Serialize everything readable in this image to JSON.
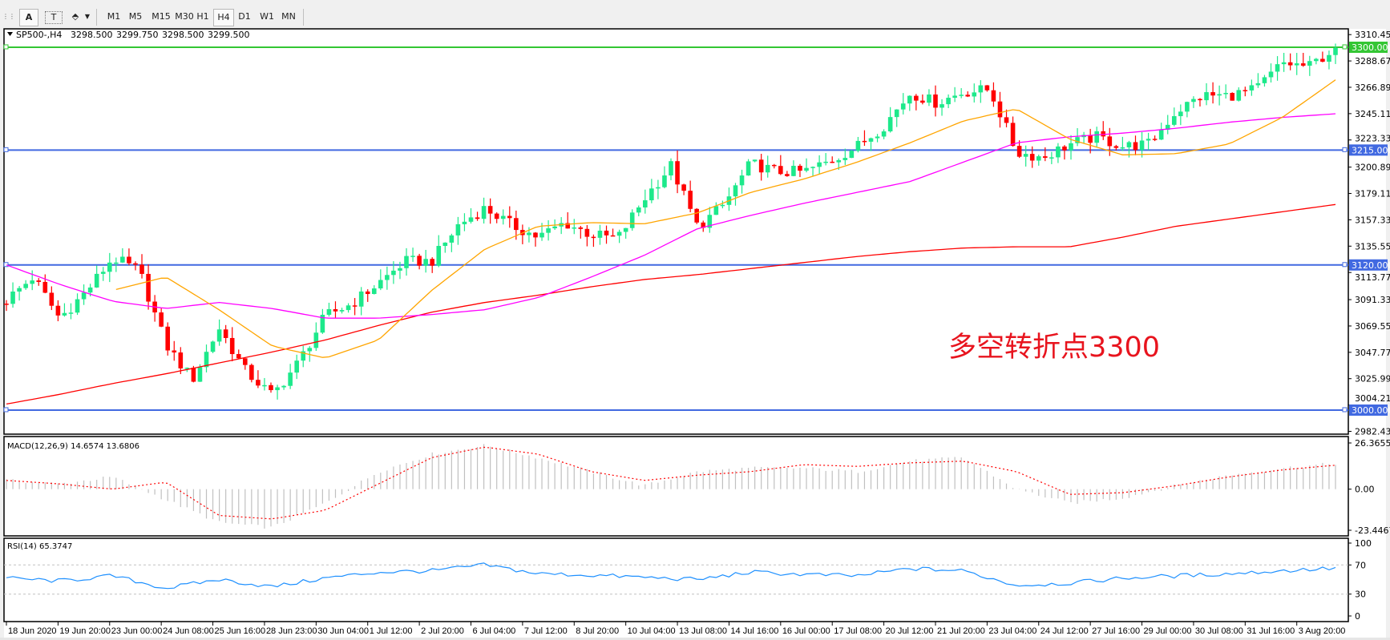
{
  "toolbar": {
    "buttons": {
      "font": "A",
      "text": "T",
      "draw": "⬘"
    },
    "timeframes": [
      "M1",
      "M5",
      "M15",
      "M30",
      "H1",
      "H4",
      "D1",
      "W1",
      "MN"
    ],
    "selected_timeframe": "H4"
  },
  "chart_header": {
    "symbol": "SP500-,H4",
    "open": "3298.500",
    "high": "3299.750",
    "low": "3298.500",
    "close": "3299.500"
  },
  "annotation": "多空转折点3300",
  "price_axis": [
    "3310.450",
    "3288.670",
    "3266.890",
    "3245.110",
    "3223.330",
    "3200.890",
    "3179.110",
    "3157.330",
    "3135.550",
    "3113.770",
    "3091.330",
    "3069.550",
    "3047.770",
    "3025.990",
    "3004.210",
    "2982.430"
  ],
  "levels": [
    {
      "price": 3300,
      "label": "3300.000",
      "color": "#33c633"
    },
    {
      "price": 3215,
      "label": "3215.000",
      "color": "#4169e1"
    },
    {
      "price": 3120,
      "label": "3120.000",
      "color": "#4169e1"
    },
    {
      "price": 3000,
      "label": "3000.000",
      "color": "#4169e1"
    }
  ],
  "time_labels": [
    "18 Jun 2020",
    "19 Jun 20:00",
    "23 Jun 00:00",
    "24 Jun 08:00",
    "25 Jun 16:00",
    "28 Jun 23:00",
    "30 Jun 04:00",
    "1 Jul 12:00",
    "2 Jul 20:00",
    "6 Jul 04:00",
    "7 Jul 12:00",
    "8 Jul 20:00",
    "10 Jul 04:00",
    "13 Jul 08:00",
    "14 Jul 16:00",
    "16 Jul 00:00",
    "17 Jul 08:00",
    "20 Jul 12:00",
    "21 Jul 20:00",
    "23 Jul 04:00",
    "24 Jul 12:00",
    "27 Jul 16:00",
    "29 Jul 00:00",
    "30 Jul 08:00",
    "31 Jul 16:00",
    "3 Aug 20:00"
  ],
  "macd": {
    "label": "MACD(12,26,9) 14.6574 13.6806",
    "axis": [
      "26.3655",
      "0.00",
      "-23.4467"
    ]
  },
  "rsi": {
    "label": "RSI(14) 65.3747",
    "axis": [
      "100",
      "70",
      "30",
      "0"
    ]
  },
  "colors": {
    "bull": "#1de98b",
    "bear": "#ff0000",
    "ma_fast": "#ffa500",
    "ma_mid": "#ff00ff",
    "ma_slow": "#ff0000",
    "rsi": "#1e90ff",
    "macd_signal": "#ff0000",
    "macd_hist": "#c0c0c0",
    "annotation": "#e8141e"
  },
  "chart_data": {
    "type": "candlestick",
    "approx_close_path": [
      3091,
      3110,
      3076,
      3098,
      3126,
      3115,
      3054,
      3025,
      3068,
      3032,
      3012,
      3040,
      3078,
      3088,
      3105,
      3123,
      3123,
      3153,
      3167,
      3153,
      3143,
      3155,
      3145,
      3142,
      3175,
      3202,
      3151,
      3170,
      3204,
      3197,
      3197,
      3206,
      3218,
      3235,
      3262,
      3254,
      3263,
      3265,
      3213,
      3209,
      3220,
      3226,
      3218,
      3220,
      3247,
      3260,
      3260,
      3265,
      3287,
      3284,
      3299.5
    ],
    "ma_fast": [
      null,
      null,
      3099,
      3110,
      3083,
      3053,
      3043,
      3058,
      3099,
      3133,
      3152,
      3155,
      3154,
      3163,
      3180,
      3191,
      3205,
      3221,
      3239,
      3249,
      3224,
      3211,
      3212,
      3220,
      3242,
      3273
    ],
    "ma_mid": [
      3120,
      3104,
      3090,
      3084,
      3089,
      3084,
      3076,
      3076,
      3079,
      3083,
      3093,
      3110,
      3128,
      3150,
      3161,
      3171,
      3180,
      3189,
      3205,
      3221,
      3226,
      3229,
      3233,
      3238,
      3242,
      3245
    ],
    "ma_slow": [
      3005,
      3013,
      3022,
      3030,
      3039,
      3048,
      3058,
      3070,
      3081,
      3089,
      3095,
      3102,
      3108,
      3112,
      3117,
      3122,
      3127,
      3131,
      3134,
      3135,
      3135,
      3143,
      3152,
      3158,
      3164,
      3170
    ],
    "macd_hist": [
      5,
      3,
      7,
      -6,
      -19,
      -22,
      -8,
      10,
      20,
      25,
      18,
      10,
      2,
      10,
      12,
      12,
      10,
      16,
      18,
      0,
      -8,
      -5,
      2,
      8,
      12,
      14.66
    ],
    "macd_signal": [
      5,
      3,
      0,
      4,
      -15,
      -17,
      -12,
      3,
      18,
      24,
      20,
      10,
      5,
      8,
      10,
      14,
      13,
      15,
      16,
      10,
      -3,
      -2,
      2,
      7,
      11,
      13.68
    ],
    "rsi": [
      52,
      48,
      55,
      38,
      50,
      40,
      52,
      60,
      62,
      70,
      58,
      56,
      53,
      50,
      60,
      57,
      55,
      65,
      62,
      42,
      45,
      52,
      55,
      58,
      62,
      65.37
    ],
    "ylim": [
      2982.43,
      3310.45
    ],
    "macd_ylim": [
      -23.4467,
      26.3655
    ],
    "rsi_ylim": [
      0,
      100
    ]
  }
}
